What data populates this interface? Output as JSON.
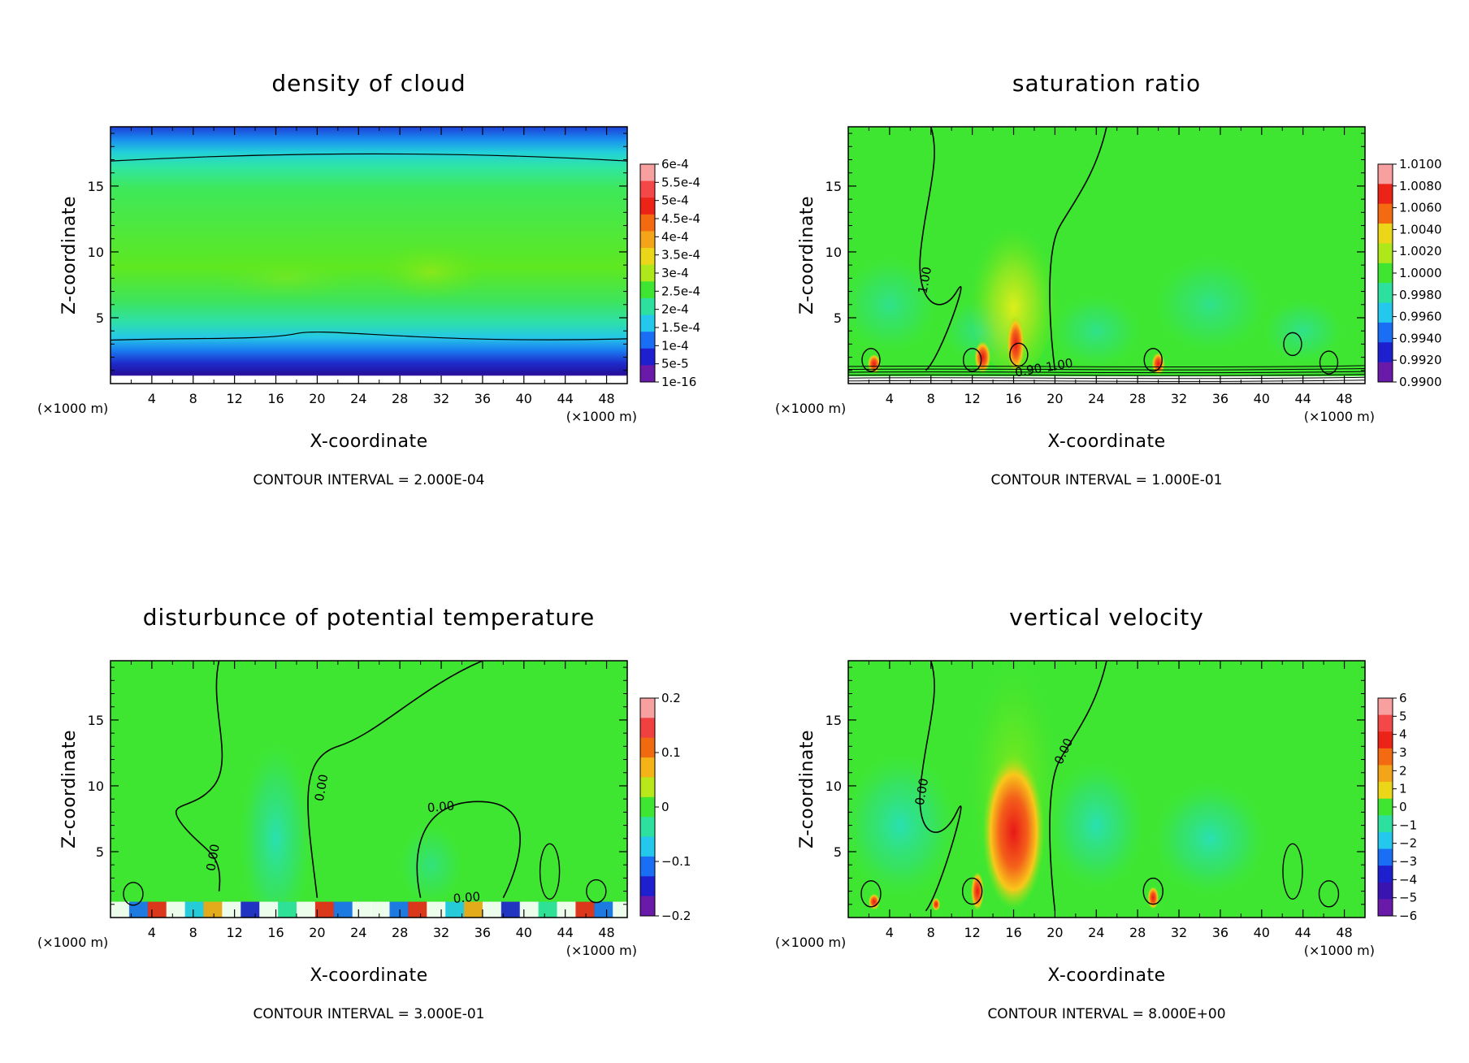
{
  "chart_data": [
    {
      "type": "heatmap",
      "title": "density of cloud",
      "xlabel": "X-coordinate",
      "ylabel": "Z-coordinate",
      "x_unit": "(×1000 m)",
      "xlim": [
        0,
        50
      ],
      "ylim": [
        0,
        19.5
      ],
      "x_ticks": [
        "4",
        "8",
        "12",
        "16",
        "20",
        "24",
        "28",
        "32",
        "36",
        "40",
        "44",
        "48"
      ],
      "y_ticks": [
        "5",
        "10",
        "15"
      ],
      "colorbar_labels": [
        "6e-4",
        "5.5e-4",
        "5e-4",
        "4.5e-4",
        "4e-4",
        "3.5e-4",
        "3e-4",
        "2.5e-4",
        "2e-4",
        "1.5e-4",
        "1e-4",
        "5e-5",
        "1e-16"
      ],
      "contour_labels": [],
      "contour_interval": "CONTOUR INTERVAL = 2.000E-04"
    },
    {
      "type": "heatmap",
      "title": "saturation ratio",
      "xlabel": "X-coordinate",
      "ylabel": "Z-coordinate",
      "x_unit": "(×1000 m)",
      "xlim": [
        0,
        50
      ],
      "ylim": [
        0,
        19.5
      ],
      "x_ticks": [
        "4",
        "8",
        "12",
        "16",
        "20",
        "24",
        "28",
        "32",
        "36",
        "40",
        "44",
        "48"
      ],
      "y_ticks": [
        "5",
        "10",
        "15"
      ],
      "colorbar_labels": [
        "1.0100",
        "1.0080",
        "1.0060",
        "1.0040",
        "1.0020",
        "1.0000",
        "0.9980",
        "0.9960",
        "0.9940",
        "0.9920",
        "0.9900"
      ],
      "contour_labels": [
        "1.00",
        "0.90",
        "1.00"
      ],
      "contour_interval": "CONTOUR INTERVAL = 1.000E-01"
    },
    {
      "type": "heatmap",
      "title": "disturbunce of potential temperature",
      "xlabel": "X-coordinate",
      "ylabel": "Z-coordinate",
      "x_unit": "(×1000 m)",
      "xlim": [
        0,
        50
      ],
      "ylim": [
        0,
        19.5
      ],
      "x_ticks": [
        "4",
        "8",
        "12",
        "16",
        "20",
        "24",
        "28",
        "32",
        "36",
        "40",
        "44",
        "48"
      ],
      "y_ticks": [
        "5",
        "10",
        "15"
      ],
      "colorbar_labels": [
        "0.2",
        "0.1",
        "0",
        "−0.1",
        "−0.2"
      ],
      "contour_labels": [
        "0.00",
        "0.00",
        "0.00",
        "0.00"
      ],
      "contour_interval": "CONTOUR INTERVAL = 3.000E-01"
    },
    {
      "type": "heatmap",
      "title": "vertical velocity",
      "xlabel": "X-coordinate",
      "ylabel": "Z-coordinate",
      "x_unit": "(×1000 m)",
      "xlim": [
        0,
        50
      ],
      "ylim": [
        0,
        19.5
      ],
      "x_ticks": [
        "4",
        "8",
        "12",
        "16",
        "20",
        "24",
        "28",
        "32",
        "36",
        "40",
        "44",
        "48"
      ],
      "y_ticks": [
        "5",
        "10",
        "15"
      ],
      "colorbar_labels": [
        "6",
        "5",
        "4",
        "3",
        "2",
        "1",
        "0",
        "−1",
        "−2",
        "−3",
        "−4",
        "−5",
        "−6"
      ],
      "contour_labels": [
        "0.00",
        "0.00"
      ],
      "contour_interval": "CONTOUR INTERVAL = 8.000E+00"
    }
  ]
}
